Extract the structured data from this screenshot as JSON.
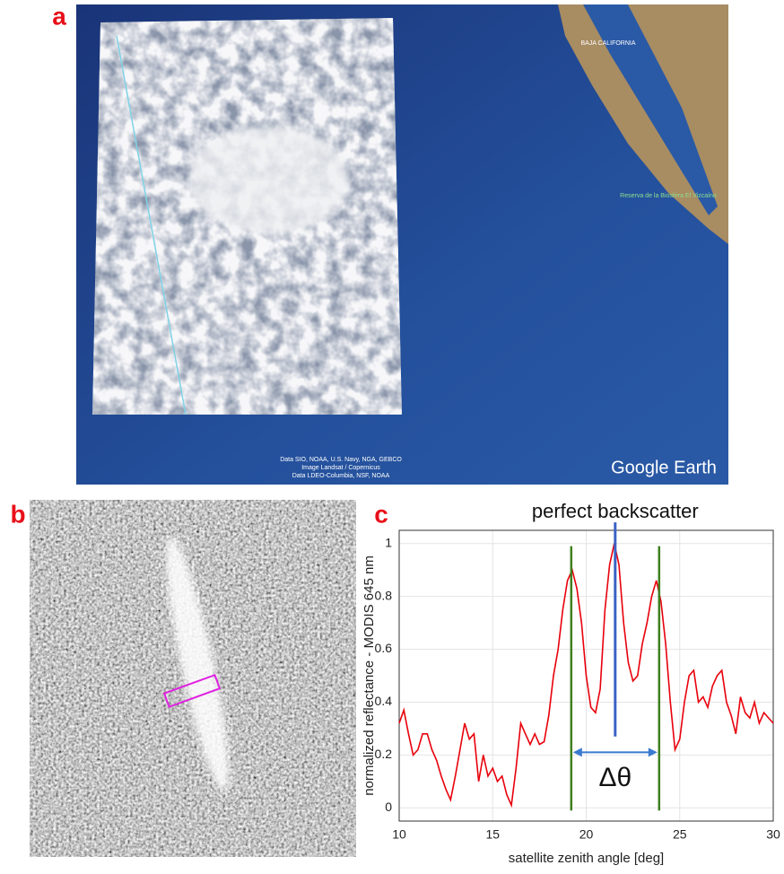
{
  "panels": {
    "a": {
      "label": "a",
      "map_labels": [
        "BAJA CALIFORNIA",
        "Reserva de la Biosfera El Vizcaíno"
      ],
      "credits": [
        "Data SIO, NOAA, U.S. Navy, NGA, GEBCO",
        "Image Landsat / Copernicus",
        "Data LDEO-Columbia, NSF, NOAA"
      ],
      "brand": "Google Earth"
    },
    "b": {
      "label": "b"
    },
    "c": {
      "label": "c"
    }
  },
  "chart_data": {
    "type": "line",
    "xlabel": "satellite zenith angle [deg]",
    "ylabel": "normalized reflectance - MODIS 645 nm",
    "x": [
      10,
      10.25,
      10.5,
      10.75,
      11,
      11.25,
      11.5,
      11.75,
      12,
      12.25,
      12.5,
      12.75,
      13,
      13.25,
      13.5,
      13.75,
      14,
      14.25,
      14.5,
      14.75,
      15,
      15.25,
      15.5,
      15.75,
      16,
      16.25,
      16.5,
      16.75,
      17,
      17.25,
      17.5,
      17.75,
      18,
      18.25,
      18.5,
      18.75,
      19,
      19.25,
      19.5,
      19.75,
      20,
      20.25,
      20.5,
      20.75,
      21,
      21.25,
      21.5,
      21.75,
      22,
      22.25,
      22.5,
      22.75,
      23,
      23.25,
      23.5,
      23.75,
      24,
      24.25,
      24.5,
      24.75,
      25,
      25.25,
      25.5,
      25.75,
      26,
      26.25,
      26.5,
      26.75,
      27,
      27.25,
      27.5,
      27.75,
      28,
      28.25,
      28.5,
      28.75,
      29,
      29.25,
      29.5,
      29.75,
      30
    ],
    "values": [
      0.32,
      0.37,
      0.28,
      0.2,
      0.22,
      0.28,
      0.28,
      0.22,
      0.18,
      0.12,
      0.07,
      0.03,
      0.12,
      0.22,
      0.32,
      0.26,
      0.28,
      0.1,
      0.2,
      0.12,
      0.15,
      0.1,
      0.12,
      0.05,
      0.01,
      0.15,
      0.32,
      0.28,
      0.24,
      0.28,
      0.24,
      0.25,
      0.35,
      0.5,
      0.6,
      0.75,
      0.86,
      0.9,
      0.83,
      0.7,
      0.5,
      0.38,
      0.36,
      0.45,
      0.75,
      0.92,
      1.0,
      0.92,
      0.7,
      0.55,
      0.48,
      0.5,
      0.62,
      0.7,
      0.8,
      0.86,
      0.78,
      0.62,
      0.4,
      0.22,
      0.26,
      0.4,
      0.5,
      0.52,
      0.4,
      0.42,
      0.38,
      0.46,
      0.5,
      0.52,
      0.4,
      0.35,
      0.28,
      0.42,
      0.36,
      0.34,
      0.4,
      0.32,
      0.36,
      0.34,
      0.32
    ],
    "color": "#e8000b",
    "xlim": [
      10,
      30
    ],
    "ylim": [
      -0.05,
      1.05
    ],
    "xticks": [
      10,
      15,
      20,
      25,
      30
    ],
    "yticks": [
      0,
      0.2,
      0.4,
      0.6,
      0.8,
      1
    ],
    "grid": true,
    "vlines": [
      {
        "x": 19.2,
        "y": [
          -0.01,
          0.99
        ],
        "color": "#3f7f1f"
      },
      {
        "x": 23.9,
        "y": [
          -0.01,
          0.99
        ],
        "color": "#3f7f1f"
      }
    ],
    "backscatter_line": {
      "x": 21.55,
      "y": [
        0.27,
        1.08
      ],
      "color": "#3a62c4"
    },
    "arrow": {
      "from": 19.2,
      "to": 23.9,
      "y": 0.21,
      "color": "#3a7ad0"
    },
    "annotations": [
      "perfect backscatter",
      "Δθ"
    ]
  }
}
